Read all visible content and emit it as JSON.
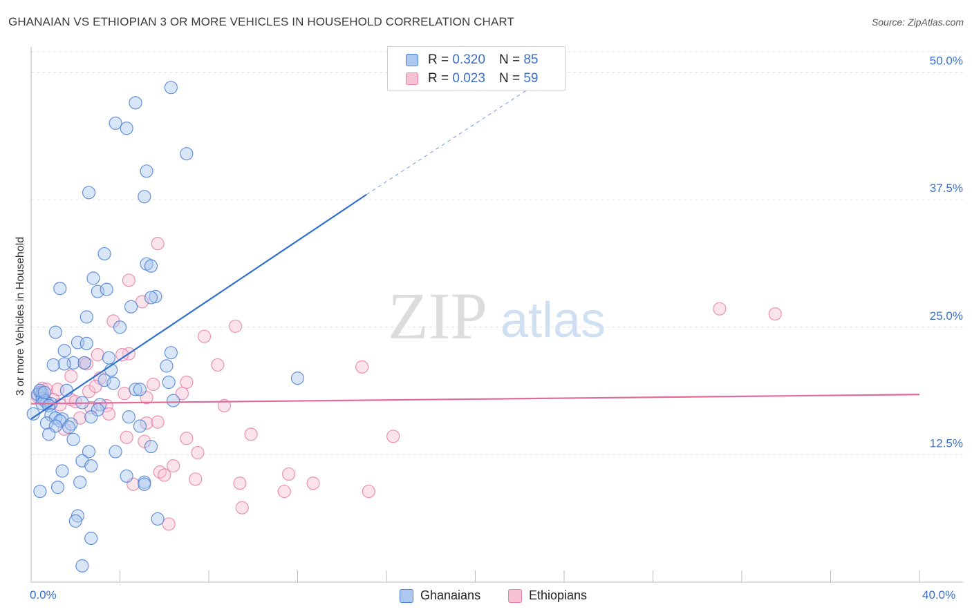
{
  "title": "GHANAIAN VS ETHIOPIAN 3 OR MORE VEHICLES IN HOUSEHOLD CORRELATION CHART",
  "source": "Source: ZipAtlas.com",
  "watermark": {
    "zip": "ZIP",
    "atlas": "atlas"
  },
  "colors": {
    "blue": "#4a7fd4",
    "blue_fill": "#aac8f0",
    "pink": "#e87fa5",
    "pink_fill": "#f7c2d4",
    "blue_line": "#2f6fce",
    "pink_line": "#e06a98",
    "axis_text": "#3a6fc9"
  },
  "legend_top": [
    {
      "r_label": "R =",
      "r_value": "0.320",
      "n_label": "N =",
      "n_value": "85"
    },
    {
      "r_label": "R =",
      "r_value": "0.023",
      "n_label": "N =",
      "n_value": "59"
    }
  ],
  "legend_bottom": [
    {
      "label": "Ghanaians"
    },
    {
      "label": "Ethiopians"
    }
  ],
  "chart_data": {
    "type": "scatter",
    "title": "GHANAIAN VS ETHIOPIAN 3 OR MORE VEHICLES IN HOUSEHOLD CORRELATION CHART",
    "xlabel": "",
    "ylabel": "3 or more Vehicles in Household",
    "xlim": [
      0,
      40
    ],
    "ylim": [
      0,
      52
    ],
    "x_tick_labels": [
      "0.0%",
      "40.0%"
    ],
    "y_ticks": [
      12.5,
      25.0,
      37.5,
      50.0
    ],
    "y_tick_labels": [
      "12.5%",
      "25.0%",
      "37.5%",
      "50.0%"
    ],
    "series": [
      {
        "name": "Ghanaians",
        "r": 0.32,
        "n": 85,
        "trend": {
          "x0": 0,
          "y0": 16.0,
          "x1": 15.1,
          "y1": 38.0,
          "dash_to_x": 22.5,
          "dash_to_y": 48.5
        },
        "points": [
          [
            6.3,
            48.5
          ],
          [
            4.7,
            47.0
          ],
          [
            3.8,
            45.0
          ],
          [
            4.3,
            44.5
          ],
          [
            7.0,
            42.0
          ],
          [
            5.2,
            40.3
          ],
          [
            2.6,
            38.2
          ],
          [
            5.1,
            37.8
          ],
          [
            3.3,
            32.2
          ],
          [
            5.2,
            31.2
          ],
          [
            5.4,
            31.0
          ],
          [
            2.8,
            29.8
          ],
          [
            1.3,
            28.8
          ],
          [
            3.0,
            28.5
          ],
          [
            3.4,
            28.7
          ],
          [
            5.6,
            28.0
          ],
          [
            5.4,
            27.9
          ],
          [
            4.5,
            27.0
          ],
          [
            2.5,
            26.0
          ],
          [
            4.0,
            25.0
          ],
          [
            1.1,
            24.5
          ],
          [
            2.1,
            23.5
          ],
          [
            2.5,
            23.4
          ],
          [
            1.5,
            22.7
          ],
          [
            6.3,
            22.5
          ],
          [
            3.5,
            22.0
          ],
          [
            1.9,
            21.5
          ],
          [
            1.5,
            21.4
          ],
          [
            2.4,
            21.5
          ],
          [
            1.0,
            21.3
          ],
          [
            6.1,
            21.2
          ],
          [
            3.6,
            20.8
          ],
          [
            3.3,
            19.8
          ],
          [
            3.7,
            19.5
          ],
          [
            6.2,
            19.6
          ],
          [
            12.0,
            20.0
          ],
          [
            0.4,
            18.6
          ],
          [
            0.3,
            18.4
          ],
          [
            0.5,
            18.5
          ],
          [
            0.5,
            18.0
          ],
          [
            0.6,
            17.8
          ],
          [
            0.7,
            17.6
          ],
          [
            0.5,
            17.5
          ],
          [
            0.9,
            17.5
          ],
          [
            0.8,
            17.3
          ],
          [
            2.3,
            17.6
          ],
          [
            1.6,
            18.8
          ],
          [
            3.1,
            17.4
          ],
          [
            3.0,
            16.9
          ],
          [
            4.7,
            18.9
          ],
          [
            4.9,
            18.9
          ],
          [
            6.4,
            17.8
          ],
          [
            0.1,
            16.5
          ],
          [
            0.9,
            16.4
          ],
          [
            1.1,
            16.1
          ],
          [
            1.4,
            16.0
          ],
          [
            2.7,
            16.2
          ],
          [
            4.4,
            16.2
          ],
          [
            1.3,
            15.8
          ],
          [
            1.8,
            15.5
          ],
          [
            1.7,
            15.2
          ],
          [
            0.7,
            15.6
          ],
          [
            1.1,
            15.3
          ],
          [
            4.9,
            15.3
          ],
          [
            0.8,
            14.5
          ],
          [
            1.9,
            14.0
          ],
          [
            5.4,
            13.3
          ],
          [
            3.8,
            12.8
          ],
          [
            2.6,
            12.8
          ],
          [
            2.3,
            11.9
          ],
          [
            2.7,
            11.4
          ],
          [
            1.4,
            10.9
          ],
          [
            4.3,
            10.4
          ],
          [
            5.1,
            9.8
          ],
          [
            5.1,
            9.6
          ],
          [
            2.2,
            9.8
          ],
          [
            1.2,
            9.3
          ],
          [
            0.4,
            8.9
          ],
          [
            2.1,
            6.5
          ],
          [
            2.0,
            6.0
          ],
          [
            5.7,
            6.2
          ],
          [
            2.7,
            4.3
          ],
          [
            2.3,
            1.6
          ],
          [
            0.4,
            18.8
          ],
          [
            0.6,
            18.6
          ]
        ]
      },
      {
        "name": "Ethiopians",
        "r": 0.023,
        "n": 59,
        "trend": {
          "x0": 0,
          "y0": 17.5,
          "x1": 40,
          "y1": 18.4
        },
        "points": [
          [
            5.7,
            33.2
          ],
          [
            4.4,
            29.6
          ],
          [
            5.0,
            27.5
          ],
          [
            3.7,
            25.6
          ],
          [
            9.2,
            25.1
          ],
          [
            7.8,
            24.1
          ],
          [
            31.0,
            26.8
          ],
          [
            33.5,
            26.3
          ],
          [
            4.4,
            22.4
          ],
          [
            4.1,
            22.3
          ],
          [
            3.0,
            22.3
          ],
          [
            2.4,
            21.5
          ],
          [
            2.5,
            21.4
          ],
          [
            8.4,
            21.3
          ],
          [
            14.9,
            21.1
          ],
          [
            1.8,
            20.2
          ],
          [
            3.1,
            20.0
          ],
          [
            5.5,
            19.4
          ],
          [
            7.0,
            19.6
          ],
          [
            0.5,
            19.0
          ],
          [
            0.7,
            18.9
          ],
          [
            1.2,
            18.9
          ],
          [
            2.6,
            18.7
          ],
          [
            6.8,
            18.5
          ],
          [
            5.2,
            18.1
          ],
          [
            1.8,
            17.9
          ],
          [
            2.0,
            17.7
          ],
          [
            8.7,
            17.3
          ],
          [
            2.7,
            17.1
          ],
          [
            3.4,
            17.3
          ],
          [
            3.5,
            16.5
          ],
          [
            2.2,
            16.1
          ],
          [
            5.2,
            15.6
          ],
          [
            5.7,
            15.7
          ],
          [
            1.5,
            15.0
          ],
          [
            4.3,
            14.2
          ],
          [
            5.1,
            13.8
          ],
          [
            7.0,
            14.1
          ],
          [
            9.9,
            14.5
          ],
          [
            16.3,
            14.3
          ],
          [
            7.5,
            12.7
          ],
          [
            6.4,
            11.4
          ],
          [
            5.8,
            10.8
          ],
          [
            6.0,
            10.5
          ],
          [
            7.4,
            10.1
          ],
          [
            9.4,
            9.7
          ],
          [
            11.6,
            10.6
          ],
          [
            12.7,
            9.7
          ],
          [
            11.4,
            8.9
          ],
          [
            15.2,
            8.9
          ],
          [
            4.6,
            9.6
          ],
          [
            9.5,
            7.3
          ],
          [
            6.2,
            5.7
          ],
          [
            0.3,
            18.2
          ],
          [
            0.6,
            18.0
          ],
          [
            1.0,
            17.9
          ],
          [
            1.3,
            17.4
          ],
          [
            4.2,
            18.5
          ],
          [
            2.9,
            19.2
          ]
        ]
      }
    ]
  }
}
